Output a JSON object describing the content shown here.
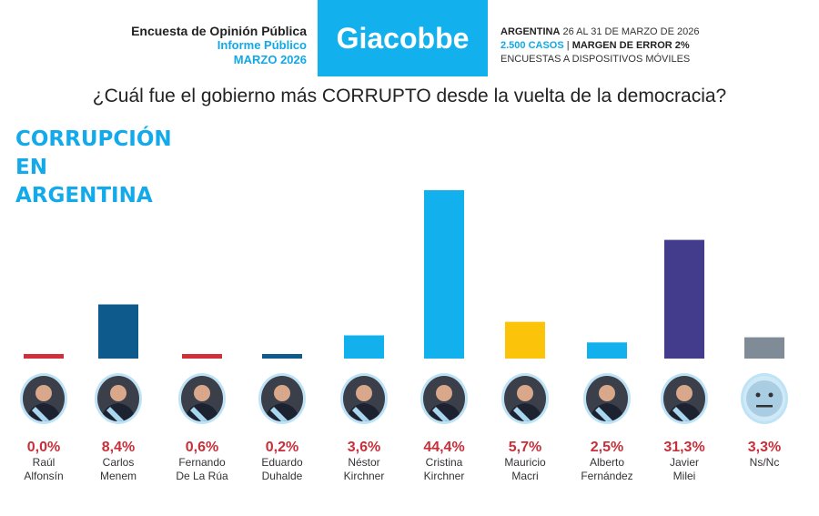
{
  "header": {
    "left_line1": "Encuesta de Opinión Pública",
    "left_line2": "Informe Público",
    "left_line3": "MARZO 2026",
    "logo": "Giacobbe",
    "right_country": "ARGENTINA",
    "right_dates": "26 AL 31 DE MARZO DE 2026",
    "right_cases": "2.500 CASOS",
    "right_sep": "|",
    "right_margin": "MARGEN DE ERROR 2%",
    "right_method": "ENCUESTAS A DISPOSITIVOS MÓVILES"
  },
  "question": "¿Cuál fue el gobierno más CORRUPTO desde la vuelta de la democracia?",
  "chart_data": {
    "type": "bar",
    "title": "CORRUPCIÓN EN ARGENTINA",
    "title_lines": [
      "CORRUPCIÓN",
      "EN",
      "ARGENTINA"
    ],
    "categories": [
      "Raúl Alfonsín",
      "Carlos Menem",
      "Fernando De La Rúa",
      "Eduardo Duhalde",
      "Néstor Kirchner",
      "Cristina Kirchner",
      "Mauricio Macri",
      "Alberto Fernández",
      "Javier Milei",
      "Ns/Nc"
    ],
    "name_lines": [
      [
        "Raúl",
        "Alfonsín"
      ],
      [
        "Carlos",
        "Menem"
      ],
      [
        "Fernando",
        "De La Rúa"
      ],
      [
        "Eduardo",
        "Duhalde"
      ],
      [
        "Néstor",
        "Kirchner"
      ],
      [
        "Cristina",
        "Kirchner"
      ],
      [
        "Mauricio",
        "Macri"
      ],
      [
        "Alberto",
        "Fernández"
      ],
      [
        "Javier",
        "Milei"
      ],
      [
        "Ns/Nc",
        ""
      ]
    ],
    "values": [
      0.0,
      8.4,
      0.6,
      0.2,
      3.6,
      44.4,
      5.7,
      2.5,
      31.3,
      3.3
    ],
    "labels": [
      "0,0%",
      "8,4%",
      "0,6%",
      "0,2%",
      "3,6%",
      "44,4%",
      "5,7%",
      "2,5%",
      "31,3%",
      "3,3%"
    ],
    "colors": [
      "#d0303a",
      "#0e5a8c",
      "#d0303a",
      "#0e5a8c",
      "#12b0ec",
      "#12b0ec",
      "#fcc30b",
      "#12b0ec",
      "#433b8c",
      "#7f8c97"
    ],
    "icons": [
      "person-photo",
      "person-photo",
      "person-photo",
      "person-photo",
      "person-photo",
      "person-photo",
      "person-photo",
      "person-photo",
      "person-photo",
      "neutral-face-icon"
    ],
    "ylim": [
      0,
      45
    ],
    "grid": false,
    "legend": "none",
    "label_color": "#c7303a"
  }
}
